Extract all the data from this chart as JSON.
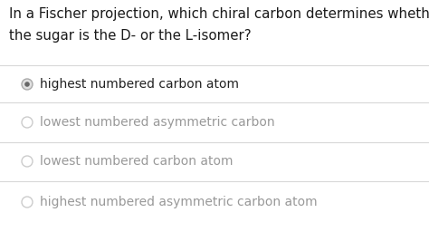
{
  "question_line1": "In a Fischer projection, which chiral carbon determines whether",
  "question_line2": "the sugar is the D- or the L-isomer?",
  "options": [
    "highest numbered carbon atom",
    "lowest numbered asymmetric carbon",
    "lowest numbered carbon atom",
    "highest numbered asymmetric carbon atom"
  ],
  "selected_index": 0,
  "background_color": "#ffffff",
  "text_color": "#1a1a1a",
  "option_selected_color": "#222222",
  "option_unselected_color": "#999999",
  "divider_color": "#d8d8d8",
  "selected_circle_fill": "#e0e0e0",
  "selected_circle_edge": "#aaaaaa",
  "selected_dot_color": "#666666",
  "unselected_circle_fill": "#ffffff",
  "unselected_circle_edge": "#cccccc",
  "question_fontsize": 10.8,
  "option_fontsize": 10.0
}
